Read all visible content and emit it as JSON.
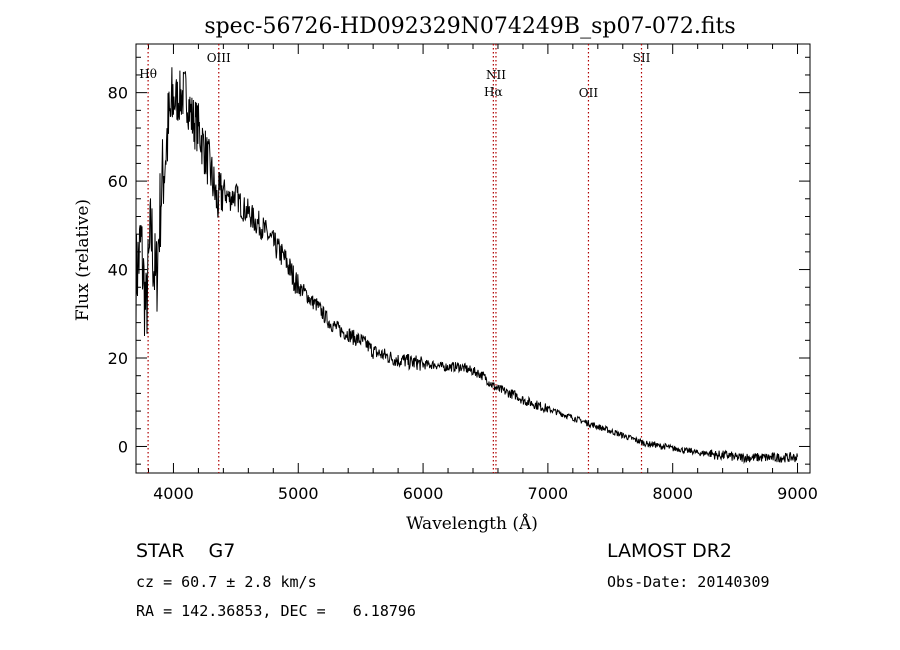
{
  "chart_data": {
    "type": "line",
    "title": "spec-56726-HD092329N074249B_sp07-072.fits",
    "xlabel": "Wavelength (Å)",
    "ylabel": "Flux (relative)",
    "xlim": [
      3700,
      9100
    ],
    "ylim": [
      -6,
      91
    ],
    "xticks": [
      4000,
      5000,
      6000,
      7000,
      8000,
      9000
    ],
    "yticks": [
      0,
      20,
      40,
      60,
      80
    ],
    "grid": false,
    "series": [
      {
        "x": [
          3700,
          3740,
          3780,
          3820,
          3860,
          3900,
          3950,
          4000,
          4050,
          4100,
          4150,
          4200,
          4250,
          4300,
          4350,
          4400,
          4450,
          4500,
          4550,
          4600,
          4650,
          4700,
          4750,
          4800,
          4850,
          4900,
          4950,
          5000,
          5050,
          5100,
          5150,
          5200,
          5250,
          5300,
          5350,
          5400,
          5450,
          5500,
          5550,
          5600,
          5650,
          5700,
          5750,
          5800,
          5850,
          5900,
          5950,
          6000,
          6050,
          6100,
          6150,
          6200,
          6250,
          6300,
          6350,
          6400,
          6450,
          6500,
          6550,
          6600,
          6650,
          6700,
          6750,
          6800,
          6850,
          6900,
          6950,
          7000,
          7050,
          7100,
          7150,
          7200,
          7250,
          7300,
          7350,
          7400,
          7450,
          7500,
          7550,
          7600,
          7650,
          7700,
          7750,
          7800,
          7850,
          7900,
          7950,
          8000,
          8050,
          8100,
          8150,
          8200,
          8250,
          8300,
          8350,
          8400,
          8450,
          8500,
          8550,
          8600,
          8650,
          8700,
          8750,
          8800,
          8850,
          8900,
          8950,
          9000
        ],
        "values": [
          38,
          46,
          30,
          49,
          36,
          57,
          70,
          78,
          79,
          80,
          74,
          72,
          67,
          62,
          55,
          58,
          56,
          57,
          54,
          53,
          51,
          50,
          48,
          46,
          44,
          42,
          39,
          36,
          35,
          33,
          32,
          30,
          28,
          27,
          26,
          25.5,
          24.5,
          24,
          23,
          21.5,
          21,
          20.5,
          20,
          19.5,
          19.5,
          19,
          19,
          18.5,
          18.5,
          18.5,
          18,
          18,
          18,
          18,
          17.5,
          17,
          16.5,
          15.5,
          14,
          13,
          12.5,
          12,
          11.5,
          10.5,
          10,
          9.5,
          9,
          8.5,
          8,
          7.5,
          7,
          6.5,
          6,
          5.5,
          5,
          4.5,
          4,
          3.5,
          3,
          2.5,
          2,
          1.5,
          1,
          0.5,
          0.5,
          0,
          0,
          -0.5,
          -0.5,
          -1,
          -1,
          -1.5,
          -1.5,
          -1.5,
          -2,
          -2,
          -2,
          -2.5,
          -2.5,
          -2.5,
          -2.5,
          -2.5,
          -2.5,
          -2.5,
          -2.5,
          -2.5,
          -2.5,
          -2.5
        ]
      }
    ],
    "lines": [
      {
        "label": "Hθ",
        "x": 3797
      },
      {
        "label": "OIII",
        "x": 4363
      },
      {
        "label": "NII",
        "x": 6584
      },
      {
        "label": "Hα",
        "x": 6563
      },
      {
        "label": "OII",
        "x": 7325
      },
      {
        "label": "SII",
        "x": 7750
      }
    ]
  },
  "info": {
    "object_line": "STAR    G7",
    "survey": "LAMOST DR2",
    "cz_line": "cz = 60.7 ± 2.8 km/s",
    "obs_date_line": "Obs-Date: 20140309",
    "radec_line": "RA = 142.36853, DEC =   6.18796"
  }
}
